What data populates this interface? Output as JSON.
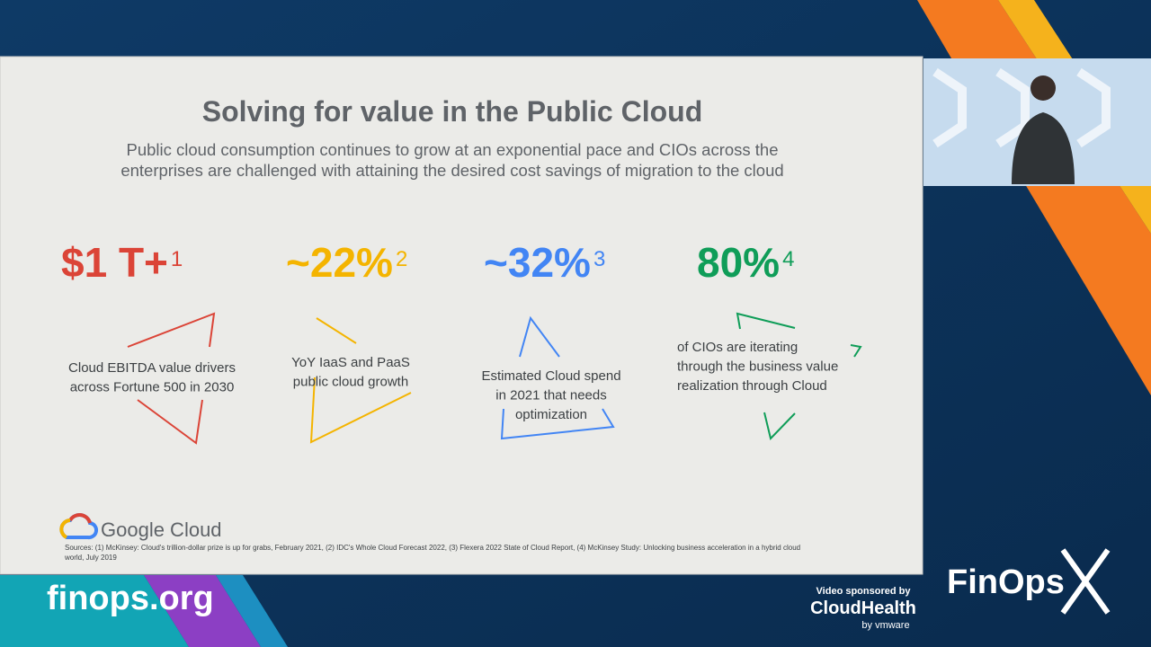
{
  "slide": {
    "title": "Solving for value in the Public Cloud",
    "subtitle": [
      "Public cloud consumption continues to grow at an exponential pace and CIOs across the",
      "enterprises are challenged with attaining the desired cost savings of migration to the cloud"
    ],
    "stats": [
      {
        "value": "$1 T+",
        "note": "1",
        "description": [
          "Cloud EBITDA value drivers",
          "across Fortune 500 in 2030"
        ]
      },
      {
        "value": "~22%",
        "note": "2",
        "description": [
          "YoY IaaS and PaaS",
          "public cloud growth"
        ]
      },
      {
        "value": "~32%",
        "note": "3",
        "description": [
          "Estimated Cloud spend",
          "in 2021 that needs",
          "optimization"
        ]
      },
      {
        "value": "80%",
        "note": "4",
        "description": [
          "of CIOs are iterating",
          "through the business value",
          "realization through Cloud"
        ]
      }
    ],
    "logo": "Google Cloud",
    "sources": [
      "Sources: (1) McKinsey:  Cloud's trillion-dollar prize is up for grabs, February 2021, (2) IDC's Whole Cloud Forecast 2022, (3) Flexera 2022 State of Cloud Report, (4) McKinsey Study: Unlocking business acceleration in a hybrid cloud",
      "world, July 2019"
    ]
  },
  "overlay": {
    "site": "finops.org",
    "sponsor_label": "Video sponsored by",
    "sponsor": "CloudHealth",
    "sponsor_sub": "by vmware",
    "brand": "FinOps"
  }
}
